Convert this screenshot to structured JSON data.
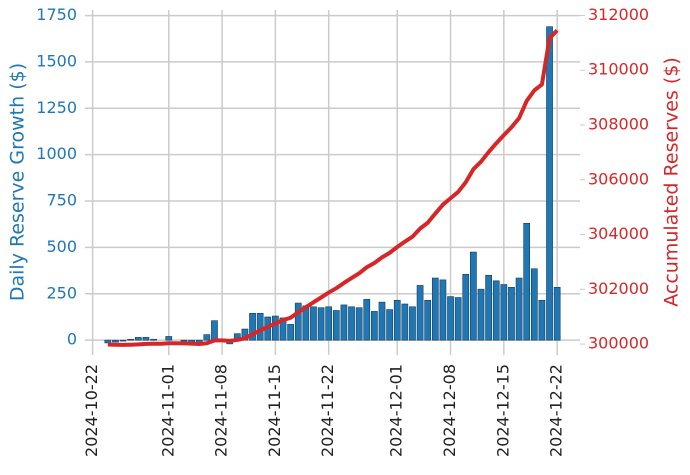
{
  "chart_data": {
    "type": "bar_line",
    "x": [
      "2024-10-24",
      "2024-10-25",
      "2024-10-26",
      "2024-10-27",
      "2024-10-28",
      "2024-10-29",
      "2024-10-30",
      "2024-10-31",
      "2024-11-01",
      "2024-11-02",
      "2024-11-03",
      "2024-11-04",
      "2024-11-05",
      "2024-11-06",
      "2024-11-07",
      "2024-11-08",
      "2024-11-09",
      "2024-11-10",
      "2024-11-11",
      "2024-11-12",
      "2024-11-13",
      "2024-11-14",
      "2024-11-15",
      "2024-11-16",
      "2024-11-17",
      "2024-11-18",
      "2024-11-19",
      "2024-11-20",
      "2024-11-21",
      "2024-11-22",
      "2024-11-23",
      "2024-11-24",
      "2024-11-25",
      "2024-11-26",
      "2024-11-27",
      "2024-11-28",
      "2024-11-29",
      "2024-11-30",
      "2024-12-01",
      "2024-12-02",
      "2024-12-03",
      "2024-12-04",
      "2024-12-05",
      "2024-12-06",
      "2024-12-07",
      "2024-12-08",
      "2024-12-09",
      "2024-12-10",
      "2024-12-11",
      "2024-12-12",
      "2024-12-13",
      "2024-12-14",
      "2024-12-15",
      "2024-12-16",
      "2024-12-17",
      "2024-12-18",
      "2024-12-19",
      "2024-12-20",
      "2024-12-21",
      "2024-12-22"
    ],
    "series": [
      {
        "name": "Daily Reserve Growth ($)",
        "kind": "bar",
        "color": "#1f77b4",
        "axis": "y",
        "values": [
          -15,
          -10,
          -5,
          5,
          15,
          15,
          5,
          0,
          20,
          0,
          -5,
          -10,
          -15,
          30,
          105,
          0,
          -20,
          35,
          60,
          145,
          145,
          125,
          130,
          120,
          85,
          200,
          185,
          180,
          175,
          180,
          160,
          190,
          180,
          175,
          220,
          155,
          205,
          165,
          215,
          195,
          180,
          295,
          215,
          335,
          325,
          235,
          230,
          355,
          475,
          275,
          350,
          320,
          300,
          285,
          335,
          630,
          385,
          215,
          1690,
          285
        ]
      },
      {
        "name": "Accumulated Reserves ($)",
        "kind": "line",
        "color": "#d62728",
        "axis": "y2",
        "values": [
          299985,
          299975,
          299970,
          299975,
          299990,
          300005,
          300010,
          300010,
          300030,
          300030,
          300025,
          300015,
          300000,
          300030,
          300135,
          300135,
          300115,
          300150,
          300210,
          300355,
          300500,
          300625,
          300755,
          300875,
          300960,
          301160,
          301345,
          301525,
          301700,
          301880,
          302040,
          302230,
          302410,
          302585,
          302805,
          302960,
          303165,
          303330,
          303545,
          303740,
          303920,
          304215,
          304430,
          304765,
          305090,
          305325,
          305555,
          305910,
          306385,
          306660,
          307010,
          307330,
          307630,
          307915,
          308250,
          308880,
          309265,
          309480,
          311170,
          311455
        ]
      }
    ],
    "y_label": "Daily Reserve Growth ($)",
    "y2_label": "Accumulated Reserves ($)",
    "xlim": [
      "2024-10-21",
      "2024-12-25"
    ],
    "xticks": [
      "2024-10-22",
      "2024-11-01",
      "2024-11-08",
      "2024-11-15",
      "2024-11-22",
      "2024-12-01",
      "2024-12-08",
      "2024-12-15",
      "2024-12-22"
    ],
    "ylim": [
      -80,
      1780
    ],
    "yticks": [
      0,
      250,
      500,
      750,
      1000,
      1250,
      1500,
      1750
    ],
    "y2lim": [
      299600,
      312200
    ],
    "y2ticks": [
      300000,
      302000,
      304000,
      306000,
      308000,
      310000,
      312000
    ],
    "grid": true
  }
}
